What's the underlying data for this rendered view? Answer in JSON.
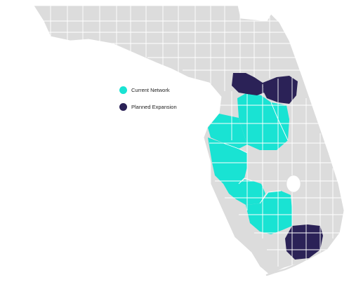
{
  "legend": {
    "items": [
      {
        "label": "Current Network",
        "color": "#19e3d3"
      },
      {
        "label": "Planned Expansion",
        "color": "#2b2257"
      }
    ]
  },
  "map": {
    "region": "Florida",
    "base_color": "#dcdcdc",
    "county_border_color": "#ffffff"
  }
}
